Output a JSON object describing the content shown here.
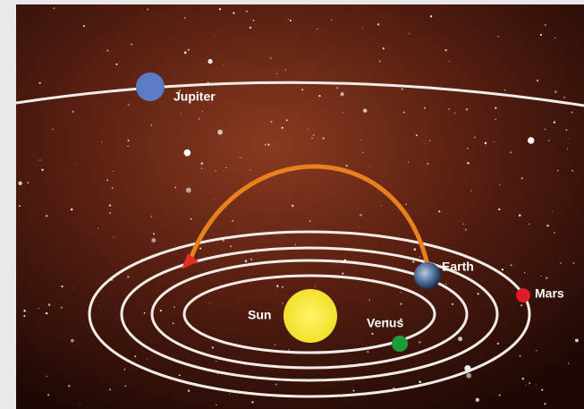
{
  "nodes": [
    {
      "label": "Jupiter"
    },
    {
      "label": "Earth"
    },
    {
      "label": "Mars"
    },
    {
      "label": "Sun"
    },
    {
      "label": "Venus"
    }
  ]
}
